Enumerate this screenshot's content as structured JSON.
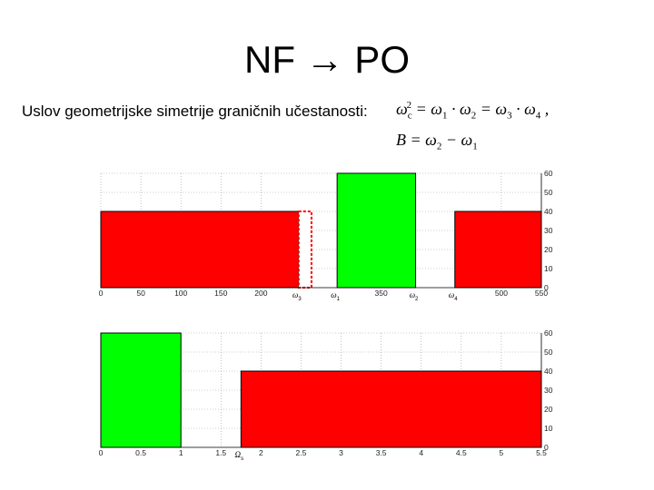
{
  "slide": {
    "title": "NF → PO",
    "subtitle": "Uslov geometrijske simetrije graničnih učestanosti:",
    "formula1": {
      "lhs_base": "ω",
      "lhs_sub": "c",
      "lhs_sup": "2",
      "t1": "ω",
      "t1_sub": "1",
      "op1": "·",
      "t2": "ω",
      "t2_sub": "2",
      "eq": "=",
      "t3": "ω",
      "t3_sub": "3",
      "op2": "·",
      "t4": "ω",
      "t4_sub": "4",
      "tail": ","
    },
    "formula2": {
      "lhs": "B",
      "eq": "=",
      "t1": "ω",
      "t1_sub": "2",
      "minus": "−",
      "t2": "ω",
      "t2_sub": "1"
    }
  },
  "chart_data": [
    {
      "type": "area",
      "xlim": [
        0,
        550
      ],
      "ylim": [
        0,
        60
      ],
      "grid": true,
      "x_ticks": [
        "0",
        "50",
        "100",
        "150",
        "200",
        "350",
        "500",
        "550"
      ],
      "x_tick_values": [
        0,
        50,
        100,
        150,
        200,
        350,
        500,
        550
      ],
      "y_ticks": [
        "0",
        "10",
        "20",
        "30",
        "40",
        "50",
        "60"
      ],
      "y_side": "right",
      "markers": [
        {
          "label": "ω",
          "sub": "3",
          "x": 247
        },
        {
          "label": "ω",
          "sub": "1",
          "x": 295
        },
        {
          "label": "ω",
          "sub": "2",
          "x": 393
        },
        {
          "label": "ω",
          "sub": "4",
          "x": 442
        }
      ],
      "bands": [
        {
          "x0": 0,
          "x1": 247,
          "y0": 0,
          "y1": 40,
          "color": "#ff0000",
          "edge": "#000000"
        },
        {
          "x0": 247,
          "x1": 263,
          "y0": 0,
          "y1": 40,
          "color": "#ffffff",
          "edge": "#ff0000",
          "dashed": true
        },
        {
          "x0": 295,
          "x1": 393,
          "y0": 0,
          "y1": 60,
          "color": "#00ff00",
          "edge": "#000000"
        },
        {
          "x0": 442,
          "x1": 550,
          "y0": 0,
          "y1": 40,
          "color": "#ff0000",
          "edge": "#000000"
        }
      ]
    },
    {
      "type": "area",
      "xlim": [
        0,
        5.5
      ],
      "ylim": [
        0,
        60
      ],
      "grid": true,
      "x_ticks": [
        "0",
        "0.5",
        "1",
        "1.5",
        "2",
        "2.5",
        "3",
        "3.5",
        "4",
        "4.5",
        "5",
        "5.5"
      ],
      "x_tick_values": [
        0,
        0.5,
        1,
        1.5,
        2,
        2.5,
        3,
        3.5,
        4,
        4.5,
        5,
        5.5
      ],
      "y_ticks": [
        "0",
        "10",
        "20",
        "30",
        "40",
        "50",
        "60"
      ],
      "y_side": "right",
      "markers": [
        {
          "label": "Ω",
          "sub": "s",
          "x": 1.75
        }
      ],
      "bands": [
        {
          "x0": 0,
          "x1": 1,
          "y0": 0,
          "y1": 60,
          "color": "#00ff00",
          "edge": "#000000"
        },
        {
          "x0": 1.75,
          "x1": 5.5,
          "y0": 0,
          "y1": 40,
          "color": "#ff0000",
          "edge": "#000000"
        }
      ]
    }
  ]
}
